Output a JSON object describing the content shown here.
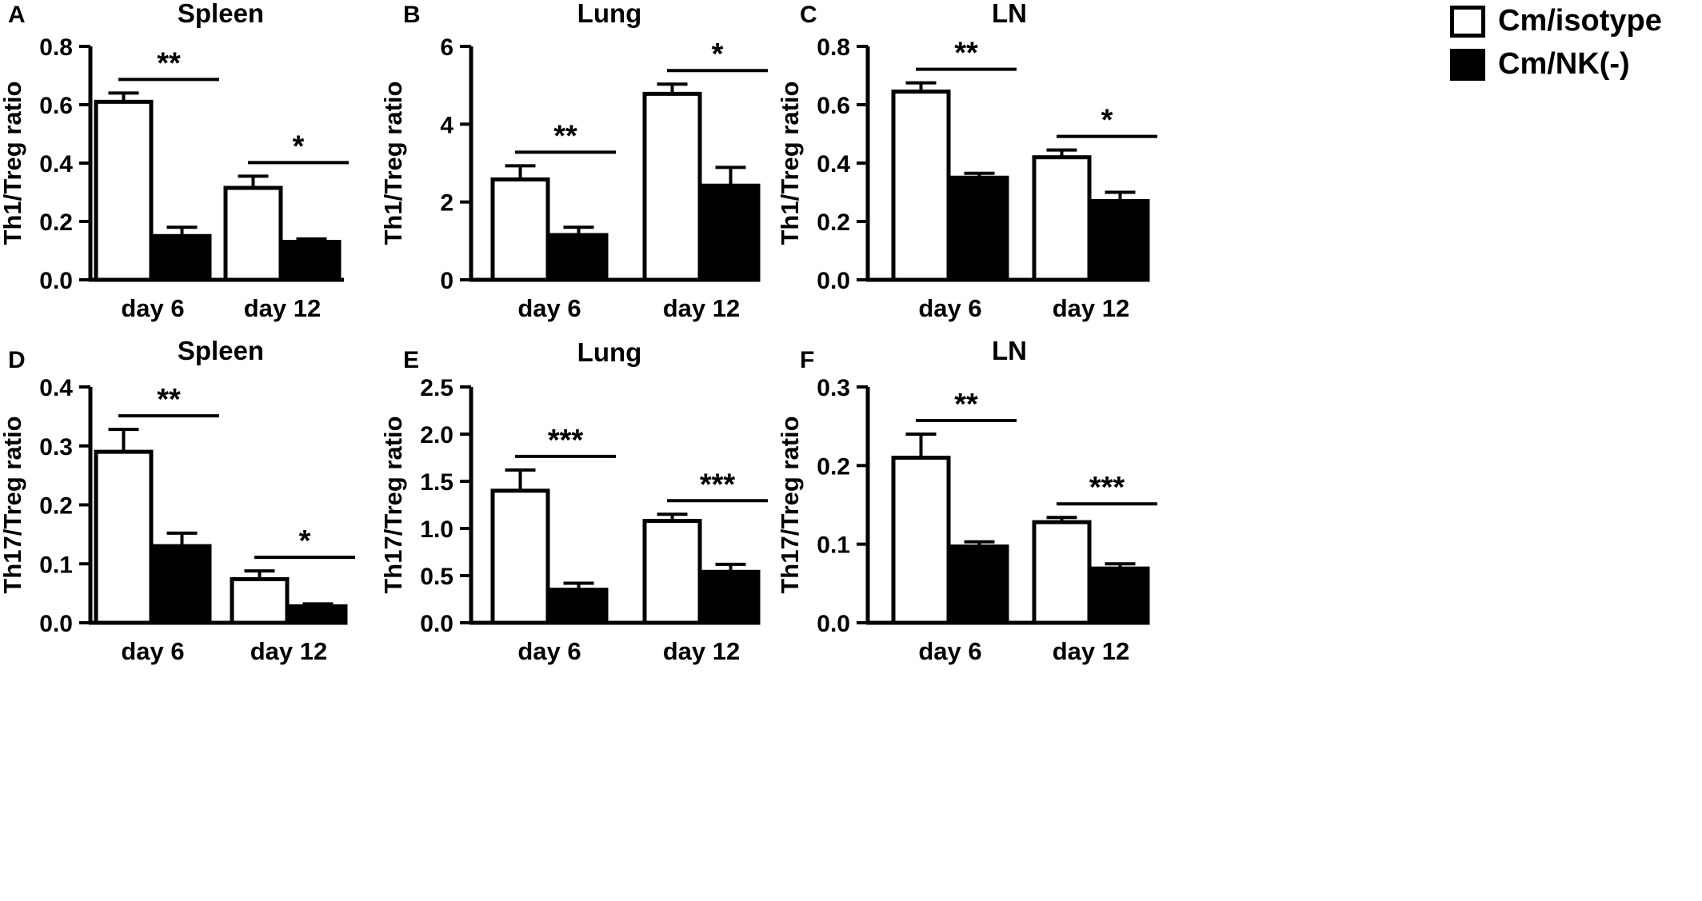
{
  "chart_data": [
    {
      "panel": "A",
      "type": "bar",
      "title": "Spleen",
      "ylabel": "Th1/Treg ratio",
      "xlabel": "",
      "categories": [
        "day 6",
        "day 12"
      ],
      "ylim": [
        0,
        0.8
      ],
      "yticks": [
        "0.0",
        "0.2",
        "0.4",
        "0.6",
        "0.8"
      ],
      "series": [
        {
          "name": "Cm/isotype",
          "values": [
            0.61,
            0.315
          ],
          "errors": [
            0.03,
            0.04
          ]
        },
        {
          "name": "Cm/NK(-)",
          "values": [
            0.15,
            0.13
          ],
          "errors": [
            0.03,
            0.01
          ]
        }
      ],
      "significance": [
        "**",
        "*"
      ]
    },
    {
      "panel": "B",
      "type": "bar",
      "title": "Lung",
      "ylabel": "Th1/Treg ratio",
      "xlabel": "",
      "categories": [
        "day 6",
        "day 12"
      ],
      "ylim": [
        0,
        6
      ],
      "yticks": [
        "0",
        "2",
        "4",
        "6"
      ],
      "series": [
        {
          "name": "Cm/isotype",
          "values": [
            2.58,
            4.78
          ],
          "errors": [
            0.35,
            0.25
          ]
        },
        {
          "name": "Cm/NK(-)",
          "values": [
            1.15,
            2.42
          ],
          "errors": [
            0.2,
            0.47
          ]
        }
      ],
      "significance": [
        "**",
        "*"
      ]
    },
    {
      "panel": "C",
      "type": "bar",
      "title": "LN",
      "ylabel": "Th1/Treg ratio",
      "xlabel": "",
      "categories": [
        "day 6",
        "day 12"
      ],
      "ylim": [
        0,
        0.8
      ],
      "yticks": [
        "0.0",
        "0.2",
        "0.4",
        "0.6",
        "0.8"
      ],
      "series": [
        {
          "name": "Cm/isotype",
          "values": [
            0.645,
            0.42
          ],
          "errors": [
            0.03,
            0.025
          ]
        },
        {
          "name": "Cm/NK(-)",
          "values": [
            0.35,
            0.27
          ],
          "errors": [
            0.015,
            0.03
          ]
        }
      ],
      "significance": [
        "**",
        "*"
      ]
    },
    {
      "panel": "D",
      "type": "bar",
      "title": "Spleen",
      "ylabel": "Th17/Treg ratio",
      "xlabel": "",
      "categories": [
        "day 6",
        "day 12"
      ],
      "ylim": [
        0,
        0.4
      ],
      "yticks": [
        "0.0",
        "0.1",
        "0.2",
        "0.3",
        "0.4"
      ],
      "series": [
        {
          "name": "Cm/isotype",
          "values": [
            0.29,
            0.074
          ],
          "errors": [
            0.038,
            0.014
          ]
        },
        {
          "name": "Cm/NK(-)",
          "values": [
            0.13,
            0.028
          ],
          "errors": [
            0.022,
            0.004
          ]
        }
      ],
      "significance": [
        "**",
        "*"
      ]
    },
    {
      "panel": "E",
      "type": "bar",
      "title": "Lung",
      "ylabel": "Th17/Treg ratio",
      "xlabel": "",
      "categories": [
        "day 6",
        "day 12"
      ],
      "ylim": [
        0,
        2.5
      ],
      "yticks": [
        "0.0",
        "0.5",
        "1.0",
        "1.5",
        "2.0",
        "2.5"
      ],
      "series": [
        {
          "name": "Cm/isotype",
          "values": [
            1.4,
            1.08
          ],
          "errors": [
            0.22,
            0.07
          ]
        },
        {
          "name": "Cm/NK(-)",
          "values": [
            0.35,
            0.54
          ],
          "errors": [
            0.07,
            0.08
          ]
        }
      ],
      "significance": [
        "***",
        "***"
      ]
    },
    {
      "panel": "F",
      "type": "bar",
      "title": "LN",
      "ylabel": "Th17/Treg ratio",
      "xlabel": "",
      "categories": [
        "day 6",
        "day 12"
      ],
      "ylim": [
        0,
        0.3
      ],
      "yticks": [
        "0.0",
        "0.1",
        "0.2",
        "0.3"
      ],
      "series": [
        {
          "name": "Cm/isotype",
          "values": [
            0.21,
            0.128
          ],
          "errors": [
            0.03,
            0.006
          ]
        },
        {
          "name": "Cm/NK(-)",
          "values": [
            0.097,
            0.069
          ],
          "errors": [
            0.006,
            0.006
          ]
        }
      ],
      "significance": [
        "**",
        "***"
      ]
    }
  ],
  "legend": {
    "items": [
      {
        "label": "Cm/isotype",
        "fill": "#ffffff"
      },
      {
        "label": "Cm/NK(-)",
        "fill": "#000000"
      }
    ]
  },
  "colors": {
    "isotype_fill": "#ffffff",
    "nk_fill": "#000000",
    "stroke": "#000000"
  }
}
